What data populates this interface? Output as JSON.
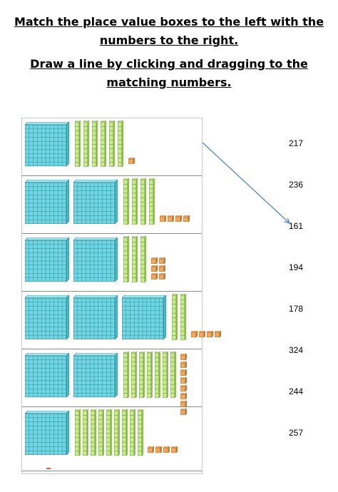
{
  "instructions": {
    "line1": "Match the place value boxes to the left with the",
    "line2": "numbers to the right.",
    "line3": "Draw a line by clicking and dragging to the",
    "line4": "matching numbers."
  },
  "rows": [
    {
      "hundreds": 1,
      "tens": 6,
      "ones": 1
    },
    {
      "hundreds": 2,
      "tens": 4,
      "ones": 4
    },
    {
      "hundreds": 2,
      "tens": 3,
      "ones": 6
    },
    {
      "hundreds": 3,
      "tens": 2,
      "ones": 4
    },
    {
      "hundreds": 2,
      "tens": 7,
      "ones": 8
    },
    {
      "hundreds": 1,
      "tens": 9,
      "ones": 4
    }
  ],
  "numbers": [
    "217",
    "236",
    "161",
    "194",
    "178",
    "324",
    "244",
    "257"
  ],
  "drawn_line": {
    "from": "row-1",
    "to": "161"
  },
  "colors": {
    "hundred_block": "#6fd6e4",
    "ten_rod": "#c8ec8c",
    "one_cube": "#f0a860",
    "line": "#4a7fc0"
  }
}
